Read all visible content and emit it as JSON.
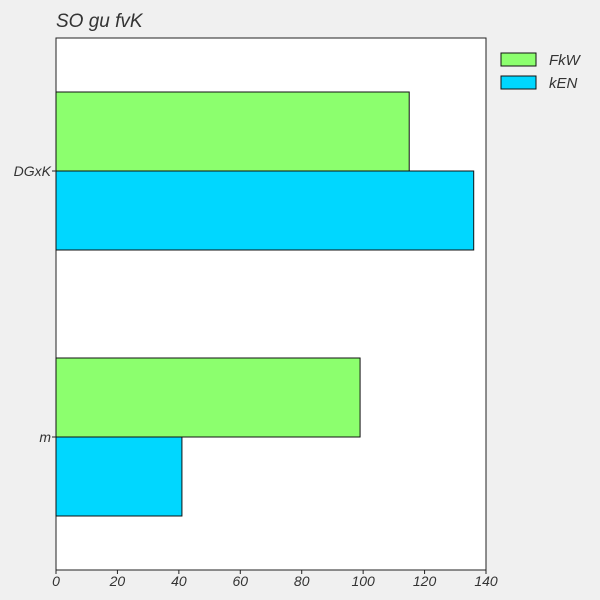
{
  "chart_data": {
    "type": "bar",
    "orientation": "horizontal",
    "title": "SO gu fvK",
    "xlabel": "",
    "ylabel": "",
    "categories": [
      "DGxK",
      "m"
    ],
    "series": [
      {
        "name": "FkW",
        "values": [
          115,
          99
        ],
        "color": "#8cff6e"
      },
      {
        "name": "kEN",
        "values": [
          136,
          41
        ],
        "color": "#00d7ff"
      }
    ],
    "xlim": [
      0,
      140
    ],
    "xticks": [
      0,
      20,
      40,
      60,
      80,
      100,
      120,
      140
    ],
    "grid": false,
    "legend_position": "top-right, outside plot"
  }
}
